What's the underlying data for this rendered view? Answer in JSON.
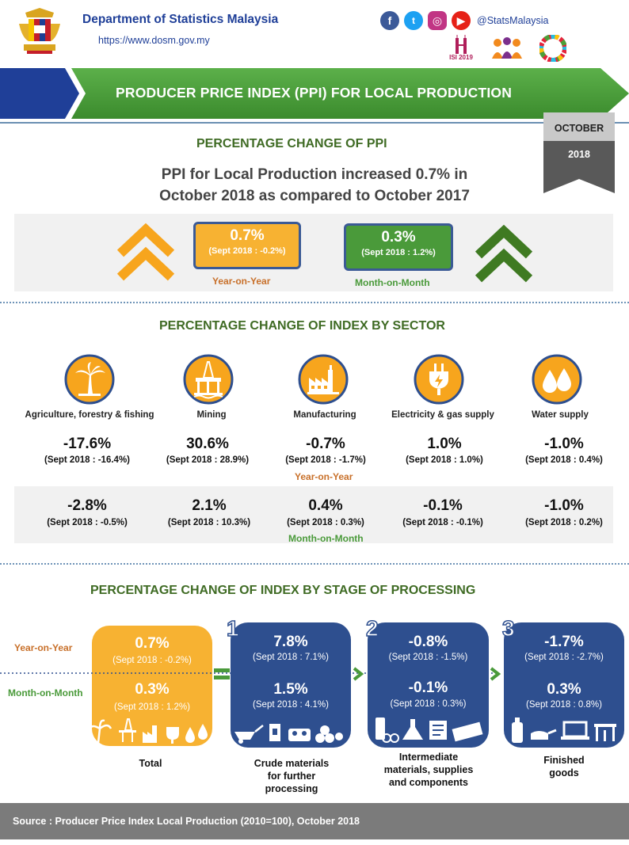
{
  "header": {
    "org_title": "Department of Statistics Malaysia",
    "org_url": "https://www.dosm.gov.my",
    "social_handle": "@StatsMalaysia",
    "social_icons": [
      "facebook-icon",
      "twitter-icon",
      "instagram-icon",
      "youtube-icon"
    ],
    "isi_logo_text": "ISI 2019"
  },
  "banner": {
    "title": "PRODUCER PRICE INDEX (PPI) FOR LOCAL PRODUCTION"
  },
  "date": {
    "month": "OCTOBER",
    "year": "2018"
  },
  "ppi": {
    "heading": "PERCENTAGE CHANGE OF PPI",
    "headline_line1": "PPI for Local Production increased 0.7% in",
    "headline_line2": "October 2018 as compared to October 2017",
    "yoy": {
      "value": "0.7%",
      "sub": "(Sept 2018 : -0.2%)",
      "label": "Year-on-Year"
    },
    "mom": {
      "value": "0.3%",
      "sub": "(Sept 2018 : 1.2%)",
      "label": "Month-on-Month"
    }
  },
  "sector": {
    "heading": "PERCENTAGE CHANGE OF INDEX BY SECTOR",
    "yoy_label": "Year-on-Year",
    "mom_label": "Month-on-Month",
    "items": [
      {
        "name": "Agriculture, forestry & fishing",
        "icon": "palm-tree-icon",
        "yoy": "-17.6%",
        "yoy_sub": "(Sept 2018 : -16.4%)",
        "mom": "-2.8%",
        "mom_sub": "(Sept 2018 : -0.5%)"
      },
      {
        "name": "Mining",
        "icon": "oil-rig-icon",
        "yoy": "30.6%",
        "yoy_sub": "(Sept 2018 : 28.9%)",
        "mom": "2.1%",
        "mom_sub": "(Sept 2018 : 10.3%)"
      },
      {
        "name": "Manufacturing",
        "icon": "factory-icon",
        "yoy": "-0.7%",
        "yoy_sub": "(Sept 2018 : -1.7%)",
        "mom": "0.4%",
        "mom_sub": "(Sept 2018 : 0.3%)"
      },
      {
        "name": "Electricity  & gas supply",
        "icon": "power-plug-icon",
        "yoy": "1.0%",
        "yoy_sub": "(Sept 2018 : 1.0%)",
        "mom": "-0.1%",
        "mom_sub": "(Sept 2018 : -0.1%)"
      },
      {
        "name": "Water supply",
        "icon": "water-drops-icon",
        "yoy": "-1.0%",
        "yoy_sub": "(Sept 2018 : 0.4%)",
        "mom": "-1.0%",
        "mom_sub": "(Sept 2018 : 0.2%)"
      }
    ]
  },
  "stage": {
    "heading": "PERCENTAGE CHANGE OF INDEX BY STAGE OF PROCESSING",
    "yoy_label": "Year-on-Year",
    "mom_label": "Month-on-Month",
    "total": {
      "label": "Total",
      "yoy": "0.7%",
      "yoy_sub": "(Sept 2018 : -0.2%)",
      "mom": "0.3%",
      "mom_sub": "(Sept 2018 : 1.2%)"
    },
    "items": [
      {
        "num": "1",
        "label_lines": [
          "Crude materials",
          "for further",
          "processing"
        ],
        "yoy": "7.8%",
        "yoy_sub": "(Sept 2018 : 7.1%)",
        "mom": "1.5%",
        "mom_sub": "(Sept 2018 : 4.1%)"
      },
      {
        "num": "2",
        "label_lines": [
          "Intermediate",
          "materials, supplies",
          "and components"
        ],
        "yoy": "-0.8%",
        "yoy_sub": "(Sept 2018 : -1.5%)",
        "mom": "-0.1%",
        "mom_sub": "(Sept 2018 : 0.3%)"
      },
      {
        "num": "3",
        "label_lines": [
          "Finished",
          "goods"
        ],
        "yoy": "-1.7%",
        "yoy_sub": "(Sept 2018 : -2.7%)",
        "mom": "0.3%",
        "mom_sub": "(Sept 2018 : 0.8%)"
      }
    ]
  },
  "colors": {
    "blue": "#2e4f8f",
    "green": "#4a9a3a",
    "orange": "#f7b232",
    "dark_green": "#3f6b24",
    "orange_text": "#c8702a"
  },
  "footer": {
    "source": "Source : Producer Price Index Local Production (2010=100),  October 2018"
  }
}
